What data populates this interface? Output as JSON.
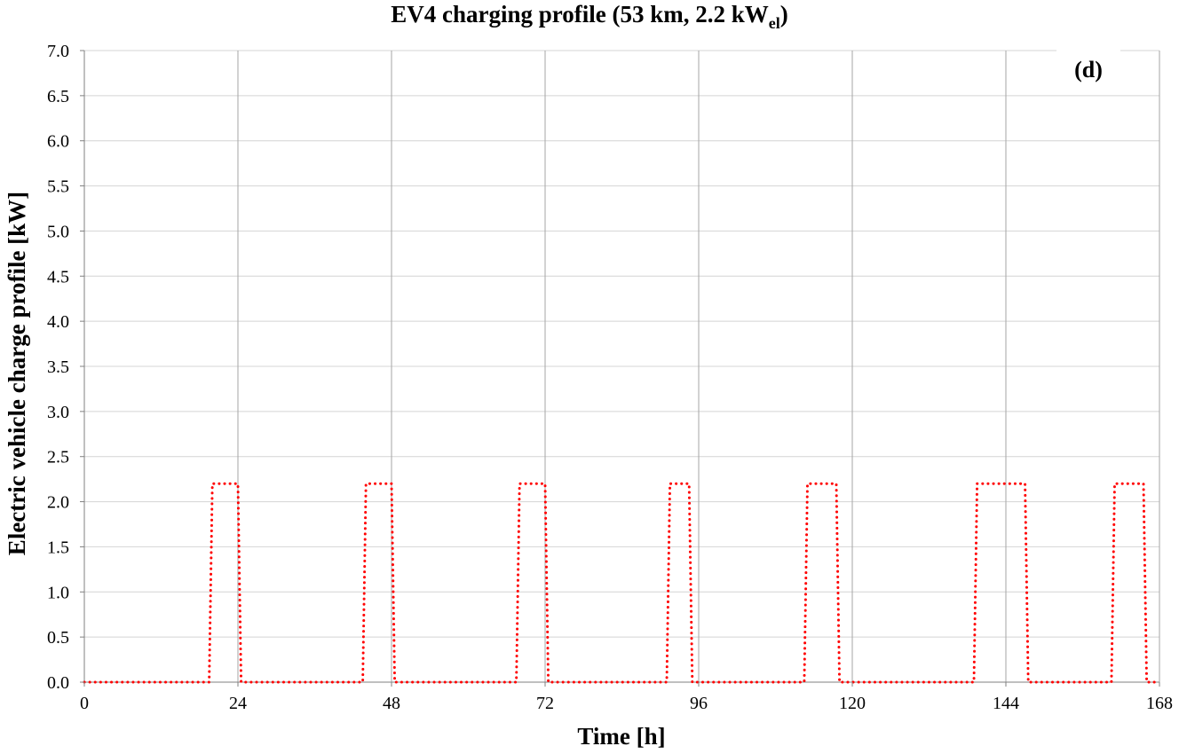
{
  "chart_data": {
    "type": "line",
    "title": "EV4 charging profile (53 km, 2.2 kW",
    "title_subscript": "el",
    "title_suffix": ")",
    "xlabel": "Time [h]",
    "ylabel": "Electric vehicle charge profile [kW]",
    "panel_label": "(d)",
    "xlim": [
      0,
      168
    ],
    "ylim": [
      0,
      7.0
    ],
    "xticks": [
      0,
      24,
      48,
      72,
      96,
      120,
      144,
      168
    ],
    "yticks": [
      0.0,
      0.5,
      1.0,
      1.5,
      2.0,
      2.5,
      3.0,
      3.5,
      4.0,
      4.5,
      5.0,
      5.5,
      6.0,
      6.5,
      7.0
    ],
    "ytick_labels": [
      "0.0",
      "0.5",
      "1.0",
      "1.5",
      "2.0",
      "2.5",
      "3.0",
      "3.5",
      "4.0",
      "4.5",
      "5.0",
      "5.5",
      "6.0",
      "6.5",
      "7.0"
    ],
    "grid": true,
    "series": [
      {
        "color": "#ff0000",
        "style": "dotted",
        "x": [
          0,
          19.5,
          20,
          24,
          24.5,
          43.5,
          44,
          48,
          48.5,
          67.5,
          68,
          72,
          72.5,
          91,
          91.5,
          94.5,
          95,
          112.5,
          113,
          117.5,
          118,
          139,
          139.5,
          147,
          147.5,
          160.5,
          161,
          165.5,
          166,
          168
        ],
        "y": [
          0,
          0,
          2.2,
          2.2,
          0,
          0,
          2.2,
          2.2,
          0,
          0,
          2.2,
          2.2,
          0,
          0,
          2.2,
          2.2,
          0,
          0,
          2.2,
          2.2,
          0,
          0,
          2.2,
          2.2,
          0,
          0,
          2.2,
          2.2,
          0,
          0
        ]
      }
    ]
  }
}
